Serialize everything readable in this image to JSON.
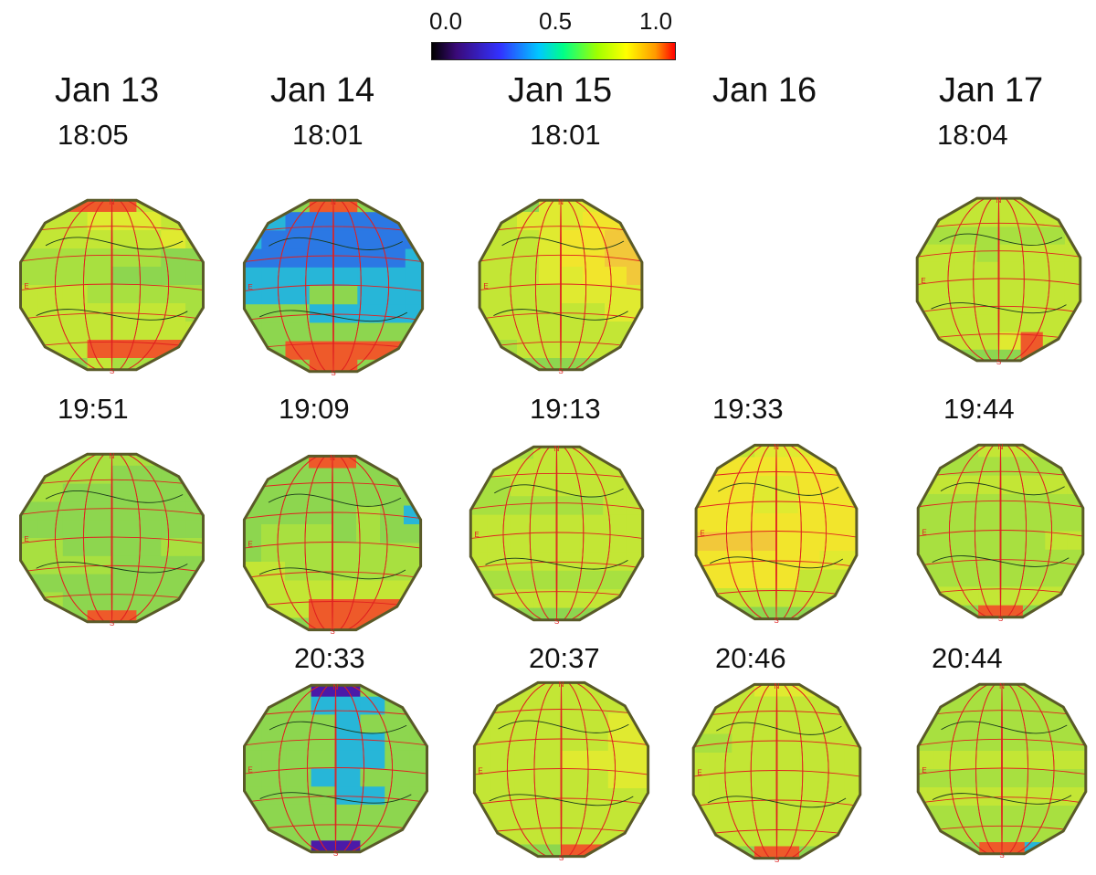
{
  "colorbar": {
    "labels": [
      "0.0",
      "0.5",
      "1.0"
    ],
    "gradient": "linear-gradient(to right,#000000 0%,#3a0a78 10%,#3232ff 28%,#00c8ff 44%,#00ff88 54%,#a0ff00 68%,#ffff00 80%,#ff9900 92%,#ff0000 100%)"
  },
  "dates": [
    "Jan 13",
    "Jan 14",
    "Jan 15",
    "Jan 16",
    "Jan 17"
  ],
  "rows": [
    [
      "18:05",
      "18:01",
      "18:01",
      "",
      "18:04"
    ],
    [
      "19:51",
      "19:09",
      "19:13",
      "19:33",
      "19:44"
    ],
    [
      "",
      "20:33",
      "20:37",
      "20:46",
      "20:44"
    ]
  ],
  "disk_palette": {
    "0": "#8dd64f",
    "1": "#a8e040",
    "2": "#c3e635",
    "3": "#e0ea30",
    "4": "#f2e52c",
    "5": "#f2c83a",
    "6": "#ee5a2a",
    "7": "#2b78e4",
    "8": "#27b6d8",
    "9": "#4b1aa8",
    "10": "#62d680"
  },
  "disk_labels": [
    "N",
    "E",
    "S"
  ],
  "disks": [
    {
      "time": "18:05",
      "rows": [
        "22666222",
        "22233322",
        "22222232",
        "11111100",
        "11110000",
        "22211111",
        "22222221",
        "22222222",
        "12266662",
        "00021100"
      ]
    },
    {
      "time": "18:01",
      "rows": [
        "00066000",
        "88777778",
        "87777777",
        "77777778",
        "88888888",
        "88800888",
        "00088888",
        "00000000",
        "00666666",
        "00066000"
      ]
    },
    {
      "time": "18:01",
      "rows": [
        "00033333",
        "22333444",
        "22234455",
        "22234455",
        "22233445",
        "22223333",
        "22222233",
        "22222222",
        "11222222",
        "00000000"
      ]
    },
    {
      "time": "18:04",
      "rows": [
        "22222222",
        "22222222",
        "11111112",
        "22212222",
        "22222222",
        "22222222",
        "22222222",
        "22222222",
        "22223622",
        "00000660"
      ]
    },
    {
      "time": "19:51",
      "rows": [
        "11111111",
        "11110000",
        "11000000",
        "00000000",
        "00000000",
        "11000011",
        "11110000",
        "00000000",
        "11000001",
        "00066000"
      ]
    },
    {
      "time": "19:09",
      "rows": [
        "00066000",
        "00000000",
        "00000000",
        "00000108",
        "01110100",
        "01111111",
        "22111111",
        "22222222",
        "22266662",
        "00066600"
      ]
    },
    {
      "time": "19:13",
      "rows": [
        "11122222",
        "22222222",
        "11222222",
        "11111122",
        "22222222",
        "22222222",
        "22222222",
        "11111111",
        "22222222",
        "00000000"
      ]
    },
    {
      "time": "19:33",
      "rows": [
        "22233322",
        "44444444",
        "44433444",
        "44433444",
        "44444444",
        "55554444",
        "44444433",
        "44444222",
        "22222222",
        "00000000"
      ]
    },
    {
      "time": "19:44",
      "rows": [
        "11122222",
        "11111111",
        "22222222",
        "11111111",
        "11111111",
        "11111122",
        "11111111",
        "11111111",
        "22222222",
        "00066000"
      ]
    },
    {
      "time": "20:33",
      "rows": [
        "00099000",
        "00088800",
        "00008000",
        "00008800",
        "00008800",
        "00088000",
        "00008800",
        "00000000",
        "00000000",
        "00099000"
      ]
    },
    {
      "time": "20:37",
      "rows": [
        "22222222",
        "22222222",
        "22222233",
        "22222233",
        "22223333",
        "22222233",
        "22222222",
        "22222222",
        "22222222",
        "00006600"
      ]
    },
    {
      "time": "20:46",
      "rows": [
        "22233333",
        "22222222",
        "22222222",
        "11222222",
        "22222222",
        "22222222",
        "22222222",
        "22222222",
        "22222222",
        "00066000"
      ]
    },
    {
      "time": "20:44",
      "rows": [
        "11111111",
        "11111111",
        "11111111",
        "11111111",
        "22222222",
        "11111111",
        "22222222",
        "11111111",
        "11111111",
        "00066800"
      ]
    }
  ]
}
